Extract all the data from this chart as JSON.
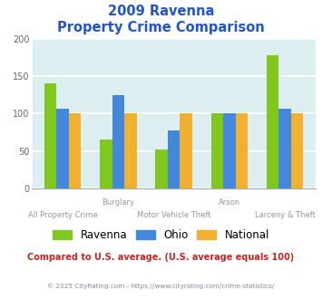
{
  "title_line1": "2009 Ravenna",
  "title_line2": "Property Crime Comparison",
  "categories": [
    "All Property Crime",
    "Burglary",
    "Motor Vehicle Theft",
    "Arson",
    "Larceny & Theft"
  ],
  "ravenna": [
    140,
    65,
    52,
    100,
    178
  ],
  "ohio": [
    107,
    125,
    77,
    100,
    106
  ],
  "national": [
    100,
    100,
    100,
    100,
    100
  ],
  "colors": {
    "ravenna": "#80c820",
    "ohio": "#4488dd",
    "national": "#f0b030"
  },
  "ylim": [
    0,
    200
  ],
  "yticks": [
    0,
    50,
    100,
    150,
    200
  ],
  "background_color": "#ddeef0",
  "title_color": "#2255cc",
  "xlabel_color": "#a090a8",
  "footer_text": "Compared to U.S. average. (U.S. average equals 100)",
  "footer_color": "#cc2222",
  "copyright_text": "© 2025 CityRating.com - https://www.cityrating.com/crime-statistics/",
  "copyright_color": "#8888aa",
  "legend_labels": [
    "Ravenna",
    "Ohio",
    "National"
  ],
  "bar_width": 0.22
}
